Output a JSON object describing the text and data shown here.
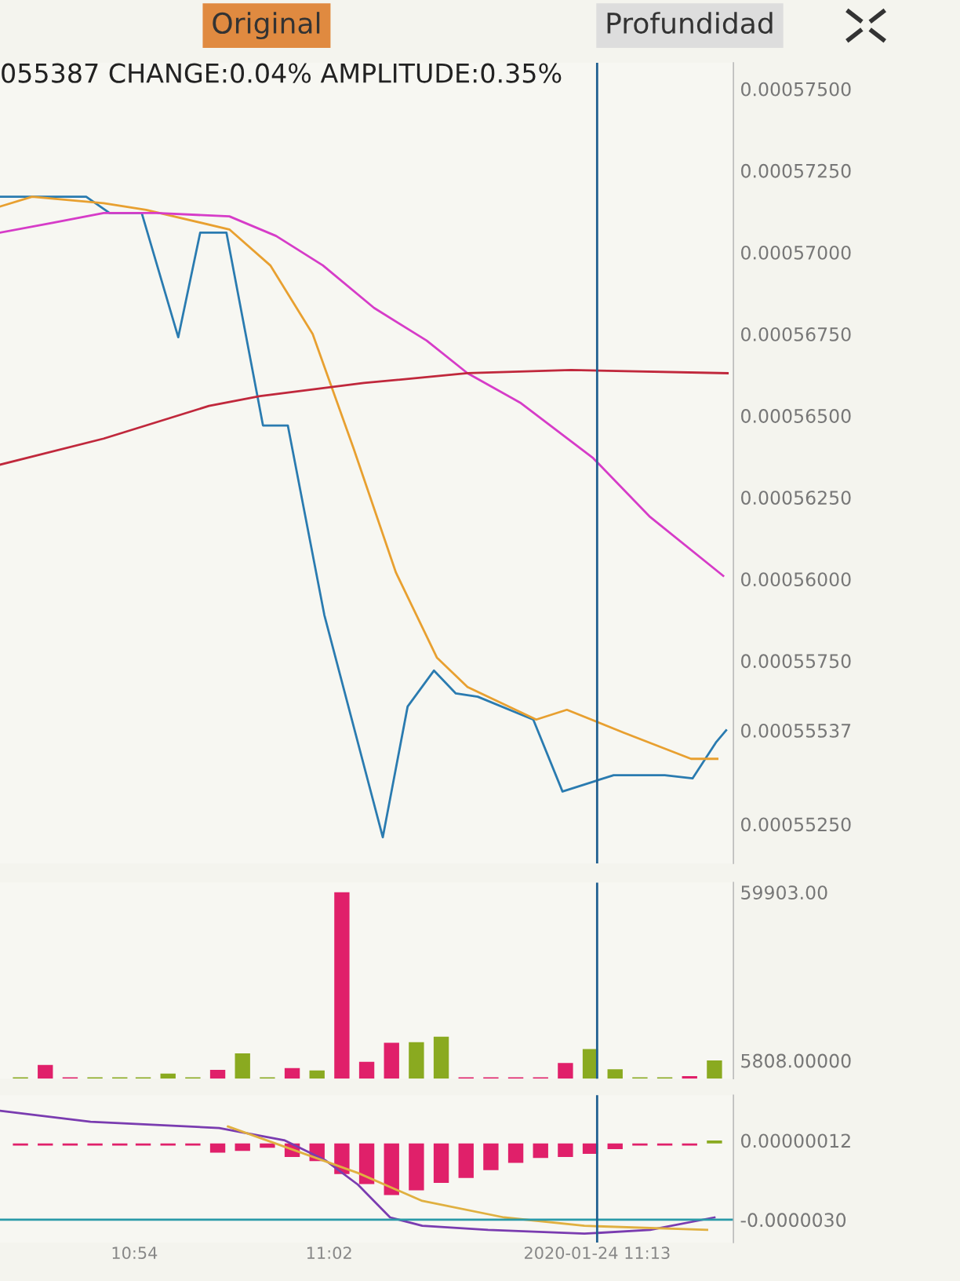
{
  "chart_data": [
    {
      "type": "line",
      "title": "055387 CHANGE:0.04% AMPLITUDE:0.35%",
      "annotations": [
        "Original",
        "Profundidad"
      ],
      "series": [
        {
          "color": "#2a7bb0",
          "x": [
            10.808,
            10.867,
            10.883,
            10.905,
            10.93,
            10.945,
            10.963,
            10.988,
            11.005,
            11.03,
            11.07,
            11.087,
            11.105,
            11.12,
            11.135,
            11.173,
            11.193,
            11.228,
            11.263,
            11.282,
            11.298,
            11.305
          ],
          "values": [
            0.0005717,
            0.0005717,
            0.0005712,
            0.0005712,
            0.0005674,
            0.0005706,
            0.0005706,
            0.0005647,
            0.0005647,
            0.0005589,
            0.0005521,
            0.0005561,
            0.0005572,
            0.0005565,
            0.0005564,
            0.0005557,
            0.0005535,
            0.000554,
            0.000554,
            0.0005539,
            0.000555,
            0.00055537
          ]
        },
        {
          "color": "#e8a030",
          "x": [
            10.808,
            10.83,
            10.879,
            10.908,
            10.965,
            10.993,
            11.022,
            11.05,
            11.079,
            11.107,
            11.128,
            11.175,
            11.196,
            11.235,
            11.281,
            11.299
          ],
          "values": [
            0.0005714,
            0.0005717,
            0.0005715,
            0.0005713,
            0.0005707,
            0.0005696,
            0.0005675,
            0.000564,
            0.0005602,
            0.0005576,
            0.0005567,
            0.0005557,
            0.000556,
            0.0005553,
            0.0005545,
            0.0005545
          ]
        },
        {
          "color": "#d63cc8",
          "x": [
            10.808,
            10.844,
            10.879,
            10.915,
            10.965,
            10.997,
            11.029,
            11.064,
            11.1,
            11.128,
            11.164,
            11.214,
            11.253,
            11.303
          ],
          "values": [
            0.0005706,
            0.0005709,
            0.0005712,
            0.0005712,
            0.0005711,
            0.0005705,
            0.0005696,
            0.0005683,
            0.0005673,
            0.0005663,
            0.0005654,
            0.0005637,
            0.0005619,
            0.0005601
          ]
        },
        {
          "color": "#c0283c",
          "x": [
            10.808,
            10.879,
            10.951,
            10.986,
            11.057,
            11.128,
            11.199,
            11.306
          ],
          "values": [
            0.0005635,
            0.0005643,
            0.0005653,
            0.0005656,
            0.000566,
            0.0005663,
            0.0005664,
            0.0005663
          ]
        }
      ],
      "xlim": [
        10.808,
        11.31
      ],
      "ylim": [
        0.0005513,
        0.0005758
      ],
      "yticks": [
        {
          "value": 0.000575,
          "label": "0.00057500"
        },
        {
          "value": 0.0005725,
          "label": "0.00057250"
        },
        {
          "value": 0.00057,
          "label": "0.00057000"
        },
        {
          "value": 0.0005675,
          "label": "0.00056750"
        },
        {
          "value": 0.000565,
          "label": "0.00056500"
        },
        {
          "value": 0.0005625,
          "label": "0.00056250"
        },
        {
          "value": 0.00056,
          "label": "0.00056000"
        },
        {
          "value": 0.0005575,
          "label": "0.00055750"
        },
        {
          "value": 0.00055537,
          "label": "0.00055537"
        },
        {
          "value": 0.0005525,
          "label": "0.00055250"
        }
      ],
      "tick_labels": "y",
      "ref_lines": [
        {
          "axis": "x",
          "value": 11.2167,
          "color": "#1f5f90"
        }
      ]
    },
    {
      "type": "bar",
      "x": [
        10.822,
        10.839,
        10.856,
        10.873,
        10.89,
        10.906,
        10.923,
        10.94,
        10.957,
        10.974,
        10.991,
        11.008,
        11.025,
        11.042,
        11.059,
        11.076,
        11.093,
        11.11,
        11.127,
        11.144,
        11.161,
        11.178,
        11.195,
        11.212,
        11.229,
        11.246,
        11.263,
        11.28,
        11.297
      ],
      "values": [
        400,
        4400,
        400,
        400,
        400,
        400,
        1600,
        400,
        2800,
        8100,
        400,
        3400,
        2600,
        59903,
        5400,
        11500,
        11700,
        13500,
        400,
        400,
        400,
        400,
        5000,
        9500,
        3000,
        400,
        400,
        800,
        5808
      ],
      "colors": [
        "#8aaa20",
        "#e0206a",
        "#e0206a",
        "#8aaa20",
        "#8aaa20",
        "#8aaa20",
        "#8aaa20",
        "#8aaa20",
        "#e0206a",
        "#8aaa20",
        "#8aaa20",
        "#e0206a",
        "#8aaa20",
        "#e0206a",
        "#e0206a",
        "#e0206a",
        "#8aaa20",
        "#8aaa20",
        "#e0206a",
        "#e0206a",
        "#e0206a",
        "#e0206a",
        "#e0206a",
        "#8aaa20",
        "#8aaa20",
        "#8aaa20",
        "#8aaa20",
        "#e0206a",
        "#8aaa20"
      ],
      "xlim": [
        10.808,
        11.31
      ],
      "ylim": [
        0,
        63000
      ],
      "yticks": [
        {
          "value": 59903,
          "label": "59903.00"
        },
        {
          "value": 5808,
          "label": "5808.00000"
        }
      ],
      "tick_labels": "y",
      "ref_lines": [
        {
          "axis": "x",
          "value": 11.2167,
          "color": "#1f5f90"
        }
      ]
    },
    {
      "type": "bar",
      "series": [
        {
          "type": "bar",
          "x": [
            10.822,
            10.839,
            10.856,
            10.873,
            10.89,
            10.906,
            10.923,
            10.94,
            10.957,
            10.974,
            10.991,
            11.008,
            11.025,
            11.042,
            11.059,
            11.076,
            11.093,
            11.11,
            11.127,
            11.144,
            11.161,
            11.178,
            11.195,
            11.212,
            11.229,
            11.246,
            11.263,
            11.28,
            11.297
          ],
          "values": [
            -8e-08,
            -8e-08,
            -8e-08,
            -8e-08,
            -8e-08,
            -8e-08,
            -8e-08,
            -8e-08,
            -3.6e-07,
            -2.9e-07,
            -1.7e-07,
            -5.3e-07,
            -6.9e-07,
            -1.2e-06,
            -1.6e-06,
            -2.03e-06,
            -1.84e-06,
            -1.55e-06,
            -1.36e-06,
            -1.05e-06,
            -7.6e-07,
            -5.7e-07,
            -5.3e-07,
            -4.1e-07,
            -2.2e-07,
            -8e-08,
            -8e-08,
            -8e-08,
            1.2e-07
          ],
          "colors": [
            "#e0206a",
            "#e0206a",
            "#e0206a",
            "#e0206a",
            "#e0206a",
            "#e0206a",
            "#e0206a",
            "#e0206a",
            "#e0206a",
            "#e0206a",
            "#e0206a",
            "#e0206a",
            "#e0206a",
            "#e0206a",
            "#e0206a",
            "#e0206a",
            "#e0206a",
            "#e0206a",
            "#e0206a",
            "#e0206a",
            "#e0206a",
            "#e0206a",
            "#e0206a",
            "#e0206a",
            "#e0206a",
            "#e0206a",
            "#e0206a",
            "#e0206a",
            "#8aaa20"
          ]
        },
        {
          "type": "line",
          "color": "#7a3cb0",
          "x": [
            10.808,
            10.87,
            10.958,
            11.003,
            11.031,
            11.053,
            11.075,
            11.097,
            11.142,
            11.208,
            11.253,
            11.297
          ],
          "values": [
            1.29e-06,
            8.6e-07,
            6.1e-07,
            1.2e-07,
            -6.7e-07,
            -1.62e-06,
            -2.91e-06,
            -3.24e-06,
            -3.4e-06,
            -3.55e-06,
            -3.4e-06,
            -2.91e-06
          ]
        },
        {
          "type": "line",
          "color": "#e0b040",
          "x": [
            10.964,
            11.053,
            11.097,
            11.153,
            11.208,
            11.292
          ],
          "values": [
            6.7e-07,
            -1.16e-06,
            -2.26e-06,
            -2.91e-06,
            -3.24e-06,
            -3.4e-06
          ]
        },
        {
          "type": "line",
          "color": "#2a9aa8",
          "x": [
            10.808,
            11.31
          ],
          "values": [
            -3e-06,
            -3e-06
          ]
        }
      ],
      "xlim": [
        10.808,
        11.31
      ],
      "ylim": [
        -3.9e-06,
        1.9e-06
      ],
      "yticks": [
        {
          "value": 1.2e-07,
          "label": "0.00000012"
        },
        {
          "value": -3e-06,
          "label": "-0.0000030"
        }
      ],
      "xticks": [
        {
          "value": 10.9,
          "label": "10:54"
        },
        {
          "value": 11.0333,
          "label": "11:02"
        },
        {
          "value": 11.2167,
          "label": "2020-01-24 11:13"
        }
      ],
      "ref_lines": [
        {
          "axis": "x",
          "value": 11.2167,
          "color": "#1f5f90"
        }
      ]
    }
  ]
}
